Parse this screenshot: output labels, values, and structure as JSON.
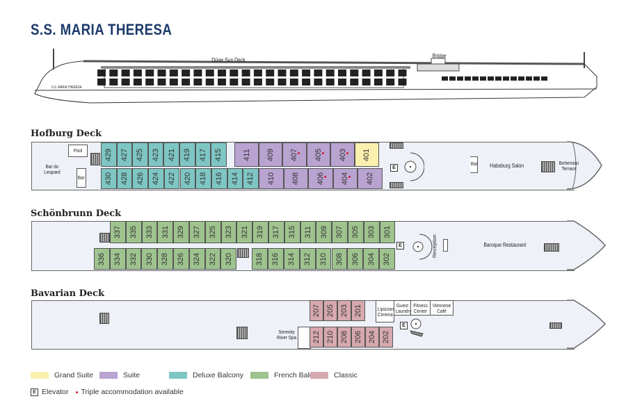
{
  "title": "S.S. MARIA THERESA",
  "profile": {
    "sun_deck": "Dürer Sun Deck",
    "bridge": "Bridge",
    "hull_name": "S.S. MARIA THERESA"
  },
  "colors": {
    "grand_suite": "#fbefb0",
    "suite": "#b9a3d1",
    "deluxe_balcony": "#7ec6c3",
    "french_balcony": "#9fc38f",
    "classic": "#d6a9ae",
    "triple_dot": "#d0202a",
    "title": "#1d3a6b"
  },
  "decks": {
    "hofburg": {
      "name": "Hofburg Deck",
      "labels": {
        "pool": "Pool",
        "bar_du_leopard": "Bar du Leopard",
        "bar_aft": "Bar",
        "bar_fwd": "Bar",
        "salon": "Habsburg Salon",
        "terrace": "Bohemian Terrace",
        "elevator": "E"
      },
      "cabins": [
        [
          "429",
          "deluxe_balcony",
          0
        ],
        [
          "427",
          "deluxe_balcony",
          0
        ],
        [
          "425",
          "deluxe_balcony",
          0
        ],
        [
          "423",
          "deluxe_balcony",
          0
        ],
        [
          "421",
          "deluxe_balcony",
          0
        ],
        [
          "419",
          "deluxe_balcony",
          0
        ],
        [
          "417",
          "deluxe_balcony",
          0
        ],
        [
          "415",
          "deluxe_balcony",
          0
        ],
        [
          "411",
          "suite",
          0
        ],
        [
          "409",
          "suite",
          0
        ],
        [
          "407",
          "suite",
          1
        ],
        [
          "405",
          "suite",
          1
        ],
        [
          "403",
          "suite",
          1
        ],
        [
          "401",
          "grand_suite",
          0
        ],
        [
          "430",
          "deluxe_balcony",
          0
        ],
        [
          "428",
          "deluxe_balcony",
          0
        ],
        [
          "426",
          "deluxe_balcony",
          0
        ],
        [
          "424",
          "deluxe_balcony",
          0
        ],
        [
          "422",
          "deluxe_balcony",
          0
        ],
        [
          "420",
          "deluxe_balcony",
          0
        ],
        [
          "418",
          "deluxe_balcony",
          0
        ],
        [
          "416",
          "deluxe_balcony",
          0
        ],
        [
          "414",
          "deluxe_balcony",
          0
        ],
        [
          "412",
          "deluxe_balcony",
          0
        ],
        [
          "410",
          "suite",
          0
        ],
        [
          "408",
          "suite",
          0
        ],
        [
          "406",
          "suite",
          1
        ],
        [
          "404",
          "suite",
          1
        ],
        [
          "402",
          "suite",
          0
        ]
      ]
    },
    "schonbrunn": {
      "name": "Schönbrunn Deck",
      "labels": {
        "reception": "Reception",
        "restaurant": "Baroque Restaurant",
        "elevator": "E"
      },
      "top": [
        "337",
        "335",
        "333",
        "331",
        "329",
        "327",
        "325",
        "323",
        "321",
        "319",
        "317",
        "315",
        "311",
        "309",
        "307",
        "305",
        "303",
        "301"
      ],
      "bottom_aft": [
        "336",
        "334",
        "332",
        "330",
        "328",
        "326",
        "324",
        "322",
        "320"
      ],
      "bottom_fwd": [
        "318",
        "316",
        "314",
        "312",
        "310",
        "308",
        "306",
        "304",
        "302"
      ],
      "category": "french_balcony"
    },
    "bavarian": {
      "name": "Bavarian Deck",
      "labels": {
        "spa": "Serenity River Spa",
        "cinema": "Lipizzan Cinema",
        "laundry": "Guest Laundry",
        "fitness": "Fitness Center",
        "cafe": "Viennese Café",
        "elevator": "E"
      },
      "top": [
        "207",
        "205",
        "203",
        "201"
      ],
      "bottom": [
        "212",
        "210",
        "208",
        "206",
        "204",
        "202"
      ],
      "category": "classic"
    }
  },
  "legend": {
    "items": [
      {
        "key": "grand_suite",
        "label": "Grand Suite"
      },
      {
        "key": "suite",
        "label": "Suite"
      },
      {
        "key": "deluxe_balcony",
        "label": "Deluxe Balcony"
      },
      {
        "key": "french_balcony",
        "label": "French Balcony"
      },
      {
        "key": "classic",
        "label": "Classic"
      }
    ],
    "elevator_key": "E",
    "elevator": "Elevator",
    "triple": "Triple accommodation available"
  }
}
